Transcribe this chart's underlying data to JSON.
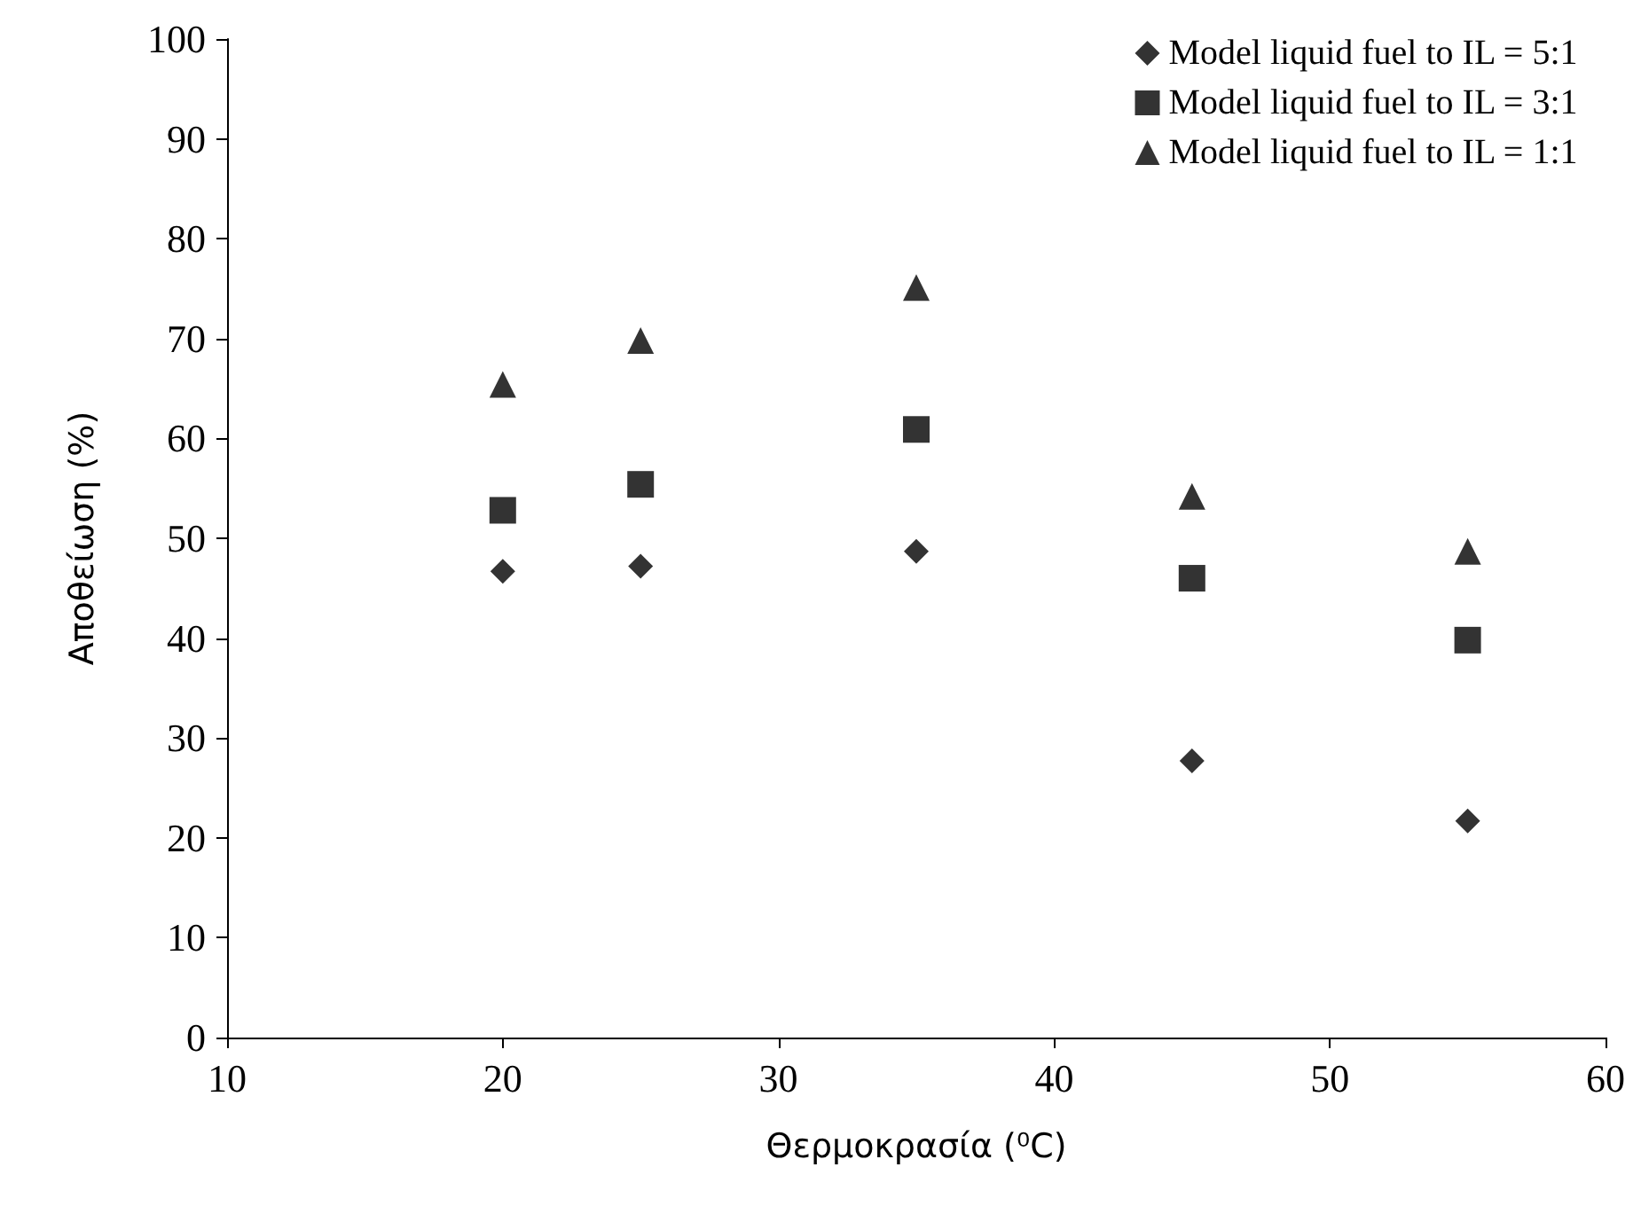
{
  "chart_data": {
    "type": "scatter",
    "xlabel": "Θερμοκρασία (⁰C)",
    "ylabel": "Αποθείωση (%)",
    "x": [
      20,
      25,
      35,
      45,
      55
    ],
    "series": [
      {
        "name": "Model liquid fuel to IL = 5:1",
        "color": "#000000",
        "marker": "diamond",
        "values": [
          46.7,
          47.2,
          48.7,
          27.7,
          21.7
        ]
      },
      {
        "name": "Model liquid fuel to IL = 3:1",
        "color": "#000000",
        "marker": "square",
        "values": [
          52.8,
          55.4,
          60.9,
          46,
          39.8
        ]
      },
      {
        "name": "Model liquid fuel to IL = 1:1",
        "color": "#000000",
        "marker": "triangle",
        "values": [
          65.4,
          69.8,
          75.1,
          54.2,
          48.7
        ]
      }
    ],
    "xlim": [
      10,
      60
    ],
    "xticks": [
      10,
      20,
      30,
      40,
      50,
      60
    ],
    "ylim": [
      0,
      100
    ],
    "yticks": [
      0,
      10,
      20,
      30,
      40,
      50,
      60,
      70,
      80,
      90,
      100
    ],
    "grid": false,
    "legend": "top right"
  }
}
